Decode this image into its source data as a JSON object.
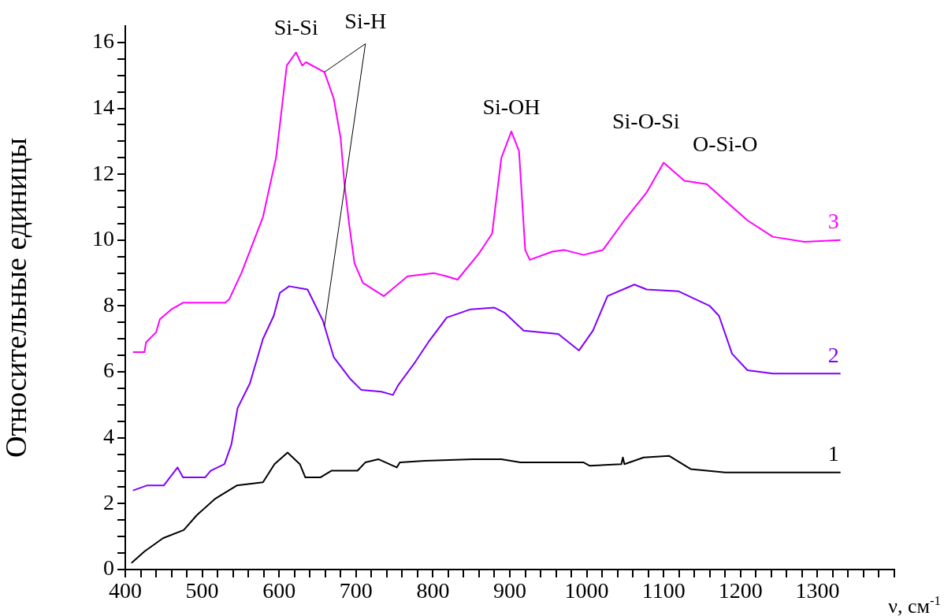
{
  "chart_data": {
    "type": "line",
    "xlabel": "ν, см$^{-1}$",
    "ylabel": "Относительные единицы",
    "grid": false,
    "legend": false,
    "marker": "none",
    "line_style": "solid",
    "xlim": [
      400,
      1400
    ],
    "ylim": [
      0,
      16.5
    ],
    "xticks": [
      400,
      {
        "value": 420,
        "label": null
      },
      {
        "value": 440,
        "label": null
      },
      {
        "value": 460,
        "label": null
      },
      {
        "value": 480,
        "label": null
      },
      500,
      {
        "value": 520,
        "label": null
      },
      {
        "value": 540,
        "label": null
      },
      {
        "value": 560,
        "label": null
      },
      {
        "value": 580,
        "label": null
      },
      600,
      {
        "value": 620,
        "label": null
      },
      {
        "value": 640,
        "label": null
      },
      {
        "value": 660,
        "label": null
      },
      {
        "value": 680,
        "label": null
      },
      700,
      {
        "value": 720,
        "label": null
      },
      {
        "value": 740,
        "label": null
      },
      {
        "value": 760,
        "label": null
      },
      {
        "value": 780,
        "label": null
      },
      800,
      {
        "value": 820,
        "label": null
      },
      {
        "value": 840,
        "label": null
      },
      {
        "value": 860,
        "label": null
      },
      {
        "value": 880,
        "label": null
      },
      900,
      {
        "value": 920,
        "label": null
      },
      {
        "value": 940,
        "label": null
      },
      {
        "value": 960,
        "label": null
      },
      {
        "value": 980,
        "label": null
      },
      1000,
      {
        "value": 1020,
        "label": null
      },
      {
        "value": 1040,
        "label": null
      },
      {
        "value": 1060,
        "label": null
      },
      {
        "value": 1080,
        "label": null
      },
      1100,
      {
        "value": 1120,
        "label": null
      },
      {
        "value": 1140,
        "label": null
      },
      {
        "value": 1160,
        "label": null
      },
      {
        "value": 1180,
        "label": null
      },
      1200,
      {
        "value": 1220,
        "label": null
      },
      {
        "value": 1240,
        "label": null
      },
      {
        "value": 1260,
        "label": null
      },
      {
        "value": 1280,
        "label": null
      },
      1300,
      {
        "value": 1320,
        "label": null
      },
      {
        "value": 1340,
        "label": null
      },
      {
        "value": 1360,
        "label": null
      },
      {
        "value": 1380,
        "label": null
      },
      {
        "value": 1400,
        "label": null
      }
    ],
    "yticks": [
      0,
      {
        "value": 0.5,
        "label": null
      },
      {
        "value": 1,
        "label": null
      },
      {
        "value": 1.5,
        "label": null
      },
      2,
      {
        "value": 2.5,
        "label": null
      },
      {
        "value": 3,
        "label": null
      },
      {
        "value": 3.5,
        "label": null
      },
      4,
      {
        "value": 4.5,
        "label": null
      },
      {
        "value": 5,
        "label": null
      },
      {
        "value": 5.5,
        "label": null
      },
      6,
      {
        "value": 6.5,
        "label": null
      },
      {
        "value": 7,
        "label": null
      },
      {
        "value": 7.5,
        "label": null
      },
      8,
      {
        "value": 8.5,
        "label": null
      },
      {
        "value": 9,
        "label": null
      },
      {
        "value": 9.5,
        "label": null
      },
      10,
      {
        "value": 10.5,
        "label": null
      },
      {
        "value": 11,
        "label": null
      },
      {
        "value": 11.5,
        "label": null
      },
      12,
      {
        "value": 12.5,
        "label": null
      },
      {
        "value": 13,
        "label": null
      },
      {
        "value": 13.5,
        "label": null
      },
      14,
      {
        "value": 14.5,
        "label": null
      },
      {
        "value": 15,
        "label": null
      },
      {
        "value": 15.5,
        "label": null
      },
      16
    ],
    "series": [
      {
        "name": "1",
        "color": "#000000",
        "x": [
          408,
          425,
          449,
          476,
          493,
          517,
          524,
          545,
          579,
          594,
          611,
          627,
          634,
          654,
          668,
          702,
          712,
          729,
          753,
          757,
          789,
          852,
          889,
          914,
          996,
          1004,
          1045,
          1047,
          1049,
          1074,
          1107,
          1135,
          1180,
          1283,
          1330
        ],
        "values": [
          0.2,
          0.55,
          0.95,
          1.2,
          1.65,
          2.15,
          2.25,
          2.55,
          2.65,
          3.2,
          3.55,
          3.2,
          2.8,
          2.8,
          3,
          3,
          3.25,
          3.35,
          3.1,
          3.25,
          3.3,
          3.35,
          3.35,
          3.25,
          3.25,
          3.15,
          3.2,
          3.4,
          3.2,
          3.4,
          3.45,
          3.05,
          2.95,
          2.95,
          2.95
        ]
      },
      {
        "name": "2",
        "color": "#8000ff",
        "x": [
          410,
          428,
          450,
          468,
          475,
          504,
          511,
          529,
          538,
          546,
          562,
          579,
          593,
          601,
          613,
          637,
          657,
          671,
          692,
          707,
          733,
          748,
          755,
          777,
          794,
          818,
          849,
          880,
          893,
          918,
          963,
          990,
          1008,
          1027,
          1062,
          1078,
          1119,
          1160,
          1172,
          1189,
          1209,
          1242,
          1330
        ],
        "values": [
          2.4,
          2.55,
          2.55,
          3.1,
          2.8,
          2.8,
          3,
          3.2,
          3.8,
          4.9,
          5.65,
          7,
          7.7,
          8.4,
          8.6,
          8.5,
          7.55,
          6.45,
          5.8,
          5.45,
          5.4,
          5.3,
          5.6,
          6.3,
          6.9,
          7.65,
          7.9,
          7.95,
          7.8,
          7.25,
          7.15,
          6.65,
          7.25,
          8.3,
          8.65,
          8.5,
          8.45,
          8,
          7.7,
          6.55,
          6.05,
          5.95,
          5.95
        ]
      },
      {
        "name": "3",
        "color": "#ff00ff",
        "x": [
          410,
          425,
          427,
          440,
          445,
          460,
          475,
          530,
          535,
          551,
          579,
          596,
          610,
          622,
          630,
          635,
          659,
          671,
          680,
          685,
          691,
          698,
          709,
          736,
          767,
          801,
          818,
          832,
          860,
          877,
          889,
          902,
          912,
          920,
          926,
          955,
          971,
          996,
          1021,
          1049,
          1078,
          1100,
          1127,
          1156,
          1180,
          1209,
          1242,
          1283,
          1330
        ],
        "values": [
          6.6,
          6.6,
          6.9,
          7.2,
          7.6,
          7.9,
          8.1,
          8.1,
          8.2,
          9,
          10.7,
          12.5,
          15.3,
          15.7,
          15.3,
          15.4,
          15.1,
          14.3,
          13.1,
          11.7,
          10.5,
          9.3,
          8.7,
          8.3,
          8.9,
          9,
          8.9,
          8.8,
          9.6,
          10.2,
          12.5,
          13.3,
          12.7,
          9.7,
          9.4,
          9.65,
          9.7,
          9.55,
          9.7,
          10.6,
          11.45,
          12.35,
          11.8,
          11.7,
          11.2,
          10.6,
          10.1,
          9.95,
          10
        ]
      }
    ],
    "annotations": [
      {
        "text": "Si-Si",
        "x": 622,
        "y": 15.7
      },
      {
        "text": "Si-H",
        "x": 659,
        "y": 15.1
      },
      {
        "text": "Si-OH",
        "x": 902,
        "y": 13.3
      },
      "Si-O-Si",
      "O-Si-O"
    ]
  }
}
